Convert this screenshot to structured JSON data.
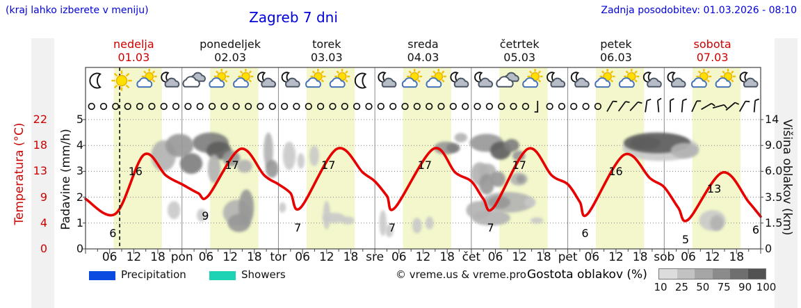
{
  "header": {
    "hint": "(kraj lahko izberete v meniju)",
    "title": "Zagreb 7 dni",
    "updated": "Zadnja posodobitev: 01.03.2026 - 08:10"
  },
  "days": [
    {
      "name": "nedelja",
      "date": "01.03",
      "highlight": true
    },
    {
      "name": "ponedeljek",
      "date": "02.03",
      "highlight": false
    },
    {
      "name": "torek",
      "date": "03.03",
      "highlight": false
    },
    {
      "name": "sreda",
      "date": "04.03",
      "highlight": false
    },
    {
      "name": "četrtek",
      "date": "05.03",
      "highlight": false
    },
    {
      "name": "petek",
      "date": "06.03",
      "highlight": false
    },
    {
      "name": "sobota",
      "date": "07.03",
      "highlight": true
    }
  ],
  "day_abbrev": [
    "pon",
    "tor",
    "sre",
    "čet",
    "pet",
    "sob"
  ],
  "hour_labels": [
    "06",
    "12",
    "18"
  ],
  "axes": {
    "temp": {
      "label": "Temperatura (°C)",
      "ticks": [
        "22",
        "18",
        "13",
        "9",
        "4",
        "0"
      ]
    },
    "precip": {
      "label": "Padavine (mm/h)",
      "ticks": [
        "5",
        "4",
        "3",
        "2",
        "1",
        "0"
      ]
    },
    "cloud": {
      "label": "Višina oblakov (km)",
      "ticks": [
        "14",
        "9.0",
        "6.0",
        "3.5",
        "1.5",
        "0"
      ]
    }
  },
  "legend": {
    "precipitation": "Precipitation",
    "showers": "Showers",
    "copyright": "© vreme.us & vreme.pro",
    "cloud_density_label": "Gostota oblakov (%)",
    "cloud_density_ticks": [
      "10",
      "25",
      "50",
      "75",
      "90",
      "100"
    ]
  },
  "colors": {
    "blue_text": "#0000dd",
    "red_text": "#cc0000",
    "curve": "#e60000",
    "day_band": "#f3f7cb",
    "precip_swatch": "#0c4be0",
    "showers_swatch": "#1ed3b4",
    "colorbar": [
      "#dcdcdc",
      "#c2c2c2",
      "#a6a6a6",
      "#8b8b8b",
      "#6f6f6f",
      "#525252"
    ],
    "cloud_shades": {
      "2": "#c9c9c9",
      "3": "#b2b2b2",
      "4": "#979797",
      "5": "#7d7d7d",
      "6": "#5d5d5d"
    }
  },
  "chart_data": {
    "type": "line",
    "title": "Zagreb 7 dni meteogram",
    "x_unit": "hours from 01.03 00:00",
    "x_range": [
      0,
      168
    ],
    "temp_scale_note": "temperature axis nonlinear: value = °C / 4.4 precip-units",
    "daylight_hours": [
      7,
      19
    ],
    "now_line_hour": 8.5,
    "daily_summary": [
      {
        "day": "nedelja",
        "min": 6,
        "max": 16
      },
      {
        "day": "ponedeljek",
        "min": 9,
        "max": 17
      },
      {
        "day": "torek",
        "min": 7,
        "max": 17
      },
      {
        "day": "sreda",
        "min": 7,
        "max": 17
      },
      {
        "day": "četrtek",
        "min": 7,
        "max": 17
      },
      {
        "day": "petek",
        "min": 6,
        "max": 16
      },
      {
        "day": "sobota",
        "min": 5,
        "max": 13
      }
    ],
    "end_temp": 6,
    "temperature_points": [
      [
        0,
        8.5
      ],
      [
        7.5,
        6
      ],
      [
        14.5,
        16
      ],
      [
        20,
        12.5
      ],
      [
        24,
        11
      ],
      [
        28,
        9.5
      ],
      [
        30.5,
        9
      ],
      [
        38.5,
        17
      ],
      [
        44.5,
        12.5
      ],
      [
        48,
        11
      ],
      [
        51,
        9.5
      ],
      [
        53.5,
        7
      ],
      [
        62.5,
        17
      ],
      [
        69,
        13
      ],
      [
        72,
        11.5
      ],
      [
        75,
        9
      ],
      [
        77,
        7
      ],
      [
        86.5,
        17
      ],
      [
        92,
        13
      ],
      [
        96,
        11.5
      ],
      [
        99,
        8.5
      ],
      [
        101.5,
        7
      ],
      [
        110,
        17
      ],
      [
        116,
        12.5
      ],
      [
        120,
        11
      ],
      [
        123,
        8
      ],
      [
        125,
        6
      ],
      [
        134,
        16
      ],
      [
        140.5,
        12
      ],
      [
        144,
        10.5
      ],
      [
        147.5,
        7
      ],
      [
        150,
        5
      ],
      [
        158.5,
        13
      ],
      [
        165,
        8
      ],
      [
        168,
        5.5
      ]
    ],
    "temperature_labels": [
      {
        "t": 7.5,
        "v": "6",
        "k": "min"
      },
      {
        "t": 14.5,
        "v": "16",
        "k": "max"
      },
      {
        "t": 30.5,
        "v": "9",
        "k": "min"
      },
      {
        "t": 38.5,
        "v": "17",
        "k": "max"
      },
      {
        "t": 53.5,
        "v": "7",
        "k": "min"
      },
      {
        "t": 62.5,
        "v": "17",
        "k": "max"
      },
      {
        "t": 77,
        "v": "7",
        "k": "min"
      },
      {
        "t": 86.5,
        "v": "17",
        "k": "max"
      },
      {
        "t": 101.5,
        "v": "7",
        "k": "min"
      },
      {
        "t": 110,
        "v": "17",
        "k": "max"
      },
      {
        "t": 125,
        "v": "6",
        "k": "min"
      },
      {
        "t": 134,
        "v": "16",
        "k": "max"
      },
      {
        "t": 150,
        "v": "5",
        "k": "min"
      },
      {
        "t": 158.5,
        "v": "13",
        "k": "max"
      },
      {
        "t": 168,
        "v": "6",
        "k": "end"
      }
    ],
    "weather_icons": [
      "moon",
      "sun",
      "sun-cloud",
      "moon-cloud",
      "clouds",
      "sun-cloud",
      "sun-cloud",
      "moon-cloud",
      "moon-cloud",
      "sun-cloud",
      "sun-cloud",
      "moon",
      "moon-cloud",
      "sun-cloud",
      "sun-cloud",
      "moon-cloud",
      "moon-cloud",
      "clouds",
      "sun-cloud",
      "moon-cloud",
      "moon-cloud",
      "sun-cloud",
      "sun-cloud",
      "moon-cloud",
      "moon-cloud",
      "sun-cloud",
      "sun-cloud",
      "moon-cloud"
    ],
    "wind_symbols": [
      "c",
      "c",
      "c",
      "c",
      "c",
      "c",
      "c",
      "c",
      "c",
      "c",
      "c",
      "c",
      "c",
      "c",
      "c",
      "c",
      "c",
      "c",
      "c",
      "c",
      "c",
      "c",
      "c",
      "c",
      "c",
      "c",
      "c",
      "c",
      "c",
      "c",
      "c",
      "c",
      "c",
      "c",
      "c",
      "c",
      "c",
      "s",
      "c",
      "c",
      "c",
      "c",
      "c",
      "b30",
      "b36",
      "b42",
      "b8",
      "b-5",
      "b0",
      "b5",
      "b25",
      "b60",
      "b75",
      "b50",
      "b30",
      "b5"
    ],
    "cloud_blobs": [
      [
        19.4,
        3.6,
        3.1,
        0.6,
        3
      ],
      [
        23.4,
        4.0,
        3.5,
        0.45,
        4
      ],
      [
        26.3,
        3.3,
        2.8,
        0.4,
        5
      ],
      [
        31.1,
        4.1,
        4.5,
        0.4,
        5
      ],
      [
        33.2,
        3.8,
        3.1,
        0.35,
        6
      ],
      [
        36.3,
        3.5,
        2.2,
        0.3,
        4
      ],
      [
        39.6,
        3.2,
        1.9,
        0.25,
        3
      ],
      [
        32.0,
        3.1,
        1.6,
        0.55,
        3
      ],
      [
        45.5,
        3.8,
        1.2,
        0.7,
        3
      ],
      [
        46.4,
        3.1,
        1.6,
        0.35,
        4
      ],
      [
        50.7,
        3.6,
        1.6,
        0.55,
        2
      ],
      [
        53.6,
        3.4,
        0.9,
        0.3,
        2
      ],
      [
        22.0,
        1.5,
        1.6,
        0.35,
        2
      ],
      [
        37.7,
        1.4,
        3.5,
        0.5,
        3
      ],
      [
        40.0,
        1.6,
        1.9,
        0.7,
        4
      ],
      [
        38.2,
        1.0,
        2.8,
        0.35,
        4
      ],
      [
        28.9,
        1.3,
        1.2,
        0.25,
        2
      ],
      [
        49.0,
        1.6,
        0.9,
        0.2,
        2
      ],
      [
        56.9,
        3.6,
        1.2,
        0.4,
        2
      ],
      [
        61.8,
        1.2,
        2.8,
        0.2,
        2
      ],
      [
        65.2,
        1.1,
        1.7,
        0.15,
        2
      ],
      [
        60.0,
        1.3,
        0.9,
        0.55,
        2
      ],
      [
        74.0,
        1.0,
        0.9,
        0.5,
        2
      ],
      [
        75.6,
        0.7,
        1.0,
        0.25,
        2
      ],
      [
        82.5,
        0.9,
        1.2,
        0.3,
        2
      ],
      [
        85.6,
        1.0,
        1.0,
        0.25,
        2
      ],
      [
        89.6,
        3.9,
        2.9,
        0.25,
        4
      ],
      [
        91.5,
        3.9,
        1.7,
        0.18,
        5
      ],
      [
        93.4,
        4.3,
        1.6,
        0.18,
        3
      ],
      [
        99.8,
        4.1,
        4.2,
        0.35,
        4
      ],
      [
        103.3,
        3.8,
        2.6,
        0.35,
        6
      ],
      [
        106.0,
        4.0,
        1.9,
        0.25,
        5
      ],
      [
        107.8,
        3.6,
        1.6,
        0.2,
        4
      ],
      [
        100.0,
        3.0,
        2.2,
        0.3,
        3
      ],
      [
        102.6,
        2.7,
        1.9,
        0.3,
        4
      ],
      [
        107.8,
        2.7,
        2.2,
        0.25,
        3
      ],
      [
        108.3,
        2.7,
        1.0,
        0.15,
        4
      ],
      [
        98.1,
        2.9,
        2.2,
        0.45,
        3
      ],
      [
        99.8,
        2.5,
        1.9,
        0.4,
        4
      ],
      [
        105.0,
        1.8,
        6.6,
        0.4,
        3
      ],
      [
        102.9,
        1.8,
        2.8,
        0.25,
        4
      ],
      [
        97.8,
        1.5,
        3.1,
        0.35,
        3
      ],
      [
        100.9,
        1.2,
        4.8,
        0.3,
        3
      ],
      [
        112.3,
        1.1,
        1.6,
        0.12,
        2
      ],
      [
        110.6,
        1.8,
        1.4,
        0.18,
        2
      ],
      [
        143.1,
        3.9,
        9.5,
        0.5,
        2
      ],
      [
        142.2,
        4.1,
        8.3,
        0.4,
        6
      ],
      [
        139.3,
        4.1,
        3.8,
        0.25,
        6
      ],
      [
        149.1,
        3.8,
        3.5,
        0.3,
        3
      ],
      [
        156.0,
        1.1,
        3.3,
        0.4,
        2
      ],
      [
        157.1,
        1.0,
        1.7,
        0.3,
        3
      ]
    ]
  }
}
